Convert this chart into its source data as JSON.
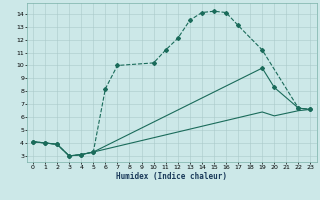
{
  "xlabel": "Humidex (Indice chaleur)",
  "background_color": "#cce8e8",
  "grid_color": "#aacaca",
  "line_color": "#1a6b5a",
  "xlim": [
    -0.5,
    23.5
  ],
  "ylim": [
    2.5,
    14.8
  ],
  "xticks": [
    0,
    1,
    2,
    3,
    4,
    5,
    6,
    7,
    8,
    9,
    10,
    11,
    12,
    13,
    14,
    15,
    16,
    17,
    18,
    19,
    20,
    21,
    22,
    23
  ],
  "yticks": [
    3,
    4,
    5,
    6,
    7,
    8,
    9,
    10,
    11,
    12,
    13,
    14
  ],
  "line1_x": [
    0,
    1,
    2,
    3,
    4,
    5,
    6,
    7,
    10,
    11,
    12,
    13,
    14,
    15,
    16,
    17,
    19,
    22,
    23
  ],
  "line1_y": [
    4.1,
    4.0,
    3.9,
    3.0,
    3.1,
    3.3,
    8.2,
    10.0,
    10.2,
    11.2,
    12.1,
    13.5,
    14.1,
    14.2,
    14.1,
    13.1,
    11.2,
    6.7,
    6.6
  ],
  "line2_x": [
    0,
    1,
    2,
    3,
    4,
    5,
    19,
    20,
    22,
    23
  ],
  "line2_y": [
    4.1,
    4.0,
    3.9,
    3.0,
    3.1,
    3.3,
    9.8,
    8.3,
    6.7,
    6.6
  ],
  "line3_x": [
    0,
    1,
    2,
    3,
    4,
    5,
    19,
    20,
    22,
    23
  ],
  "line3_y": [
    4.1,
    4.0,
    3.9,
    3.0,
    3.1,
    3.3,
    6.4,
    6.1,
    6.5,
    6.6
  ]
}
